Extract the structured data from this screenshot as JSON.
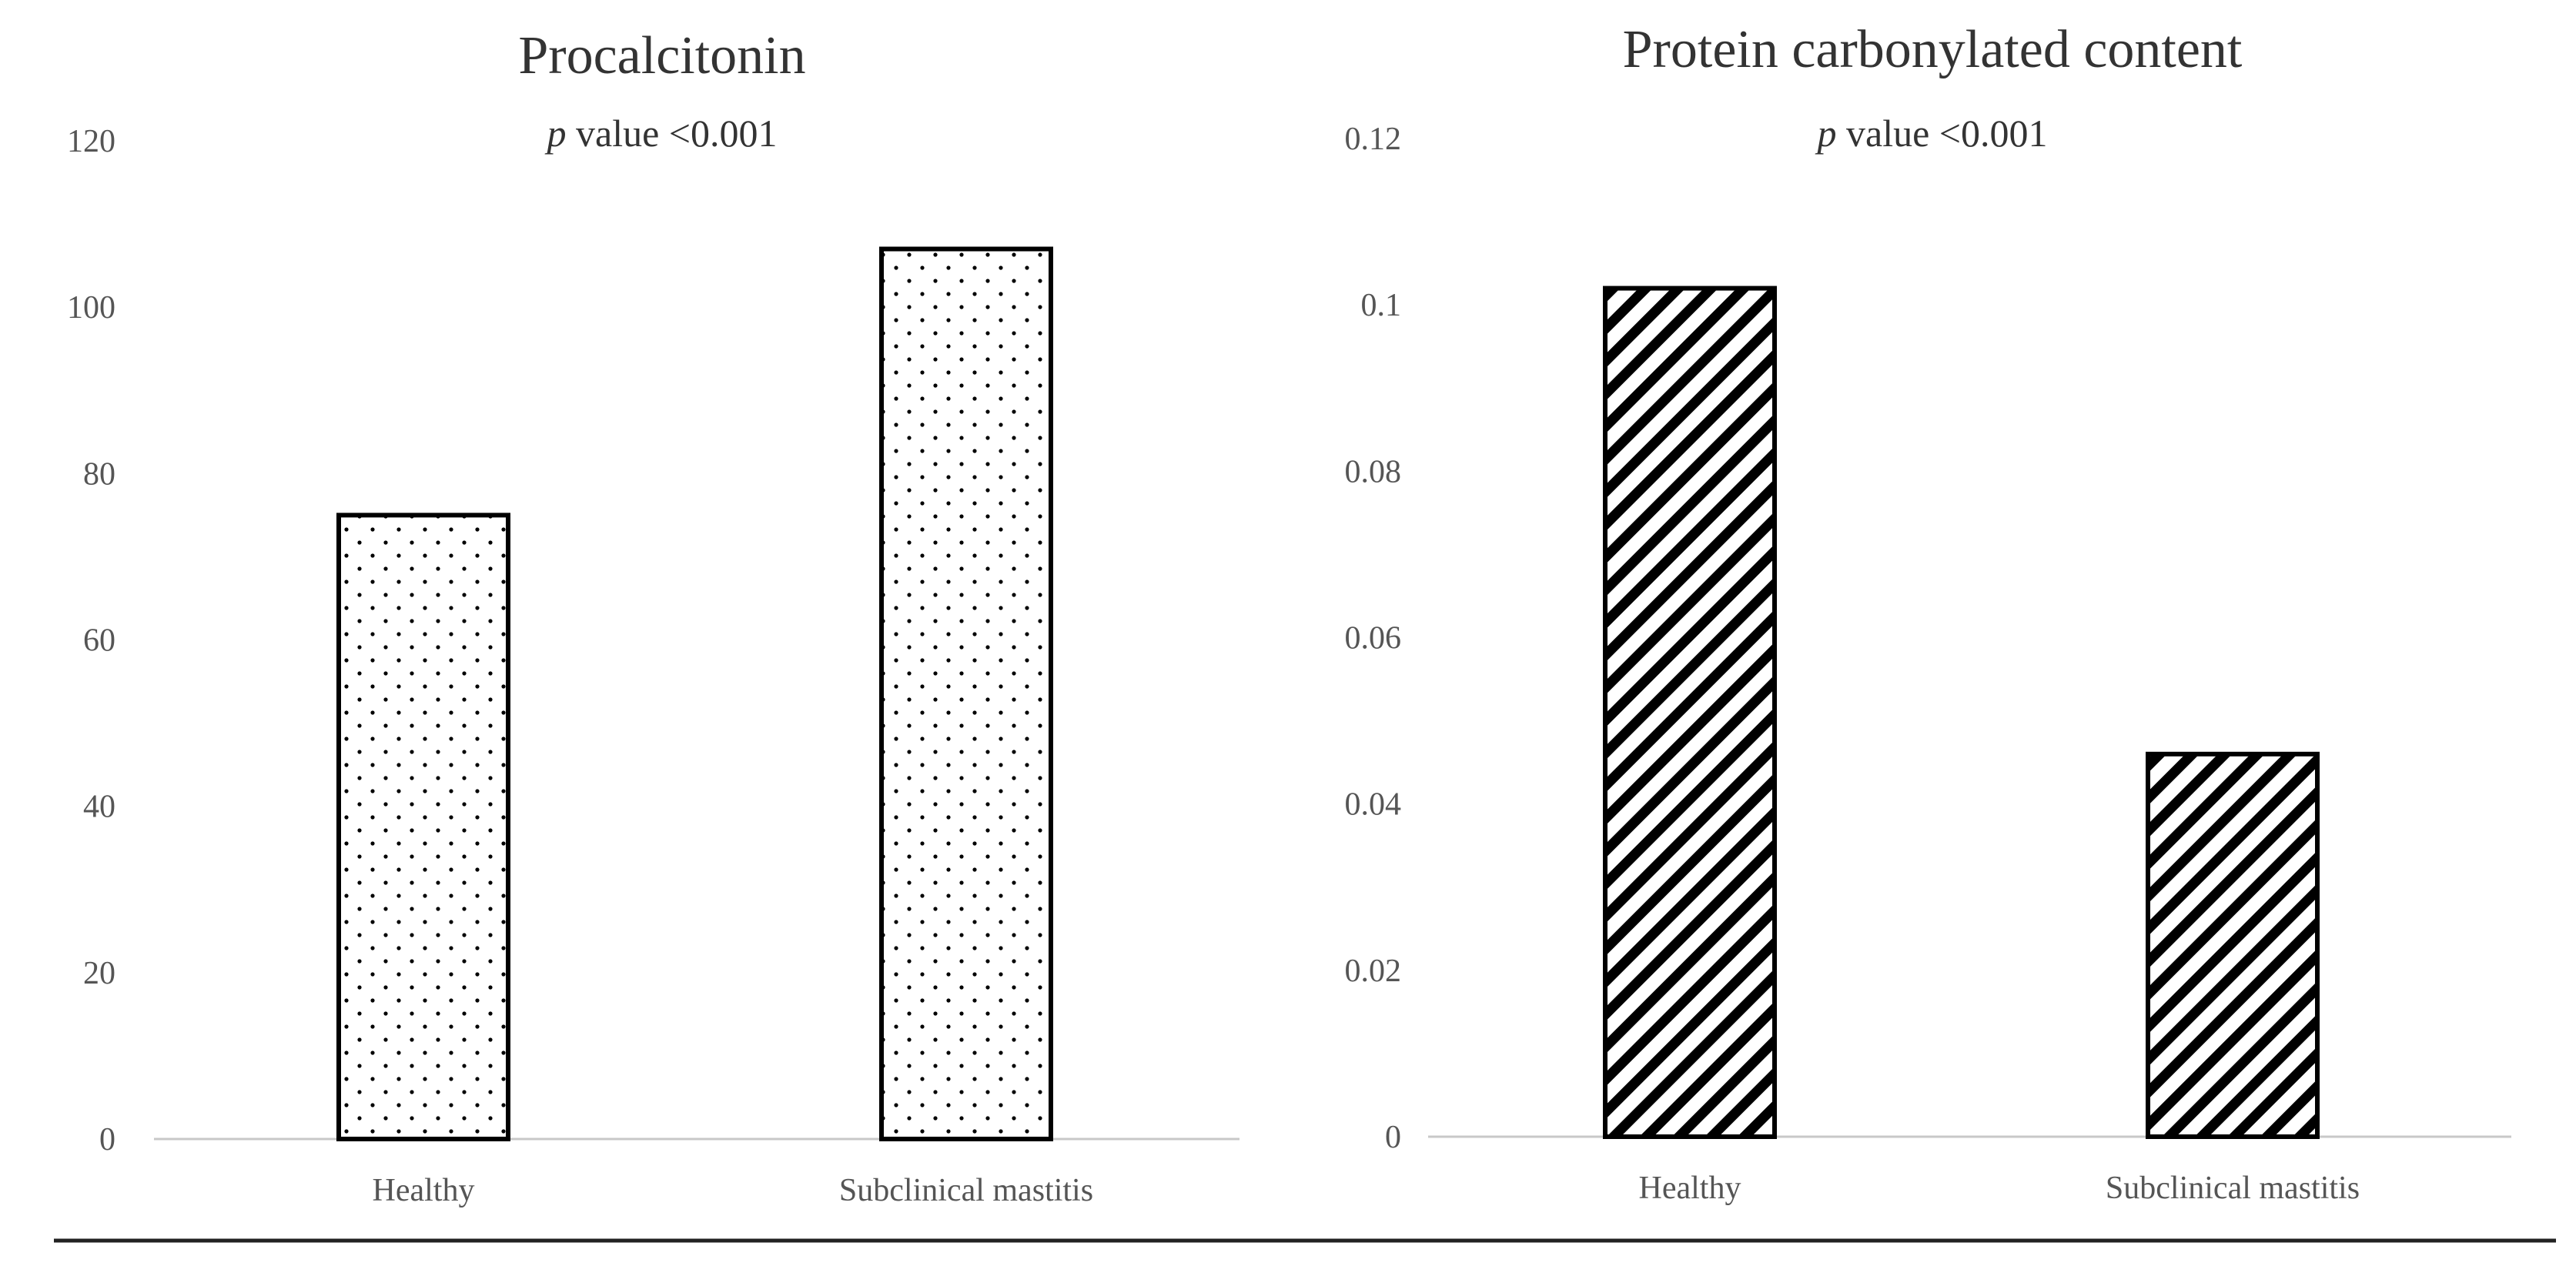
{
  "chart_data": [
    {
      "type": "bar",
      "title": "Procalcitonin",
      "annotation": {
        "italic": "p",
        "text": " value <0.001"
      },
      "categories": [
        "Healthy",
        "Subclinical mastitis"
      ],
      "values": [
        75,
        107
      ],
      "ylim": [
        0,
        120
      ],
      "yticks": [
        "0",
        "20",
        "40",
        "60",
        "80",
        "100",
        "120"
      ],
      "xlabel": "",
      "ylabel": "",
      "pattern": "dots",
      "grid": false
    },
    {
      "type": "bar",
      "title": "Protein carbonylated content",
      "annotation": {
        "italic": "p",
        "text": " value <0.001"
      },
      "categories": [
        "Healthy",
        "Subclinical mastitis"
      ],
      "values": [
        0.102,
        0.046
      ],
      "ylim": [
        0,
        0.12
      ],
      "yticks": [
        "0",
        "0.02",
        "0.04",
        "0.06",
        "0.08",
        "0.1",
        "0.12"
      ],
      "xlabel": "",
      "ylabel": "",
      "pattern": "diagonal-hatch",
      "grid": false
    }
  ]
}
